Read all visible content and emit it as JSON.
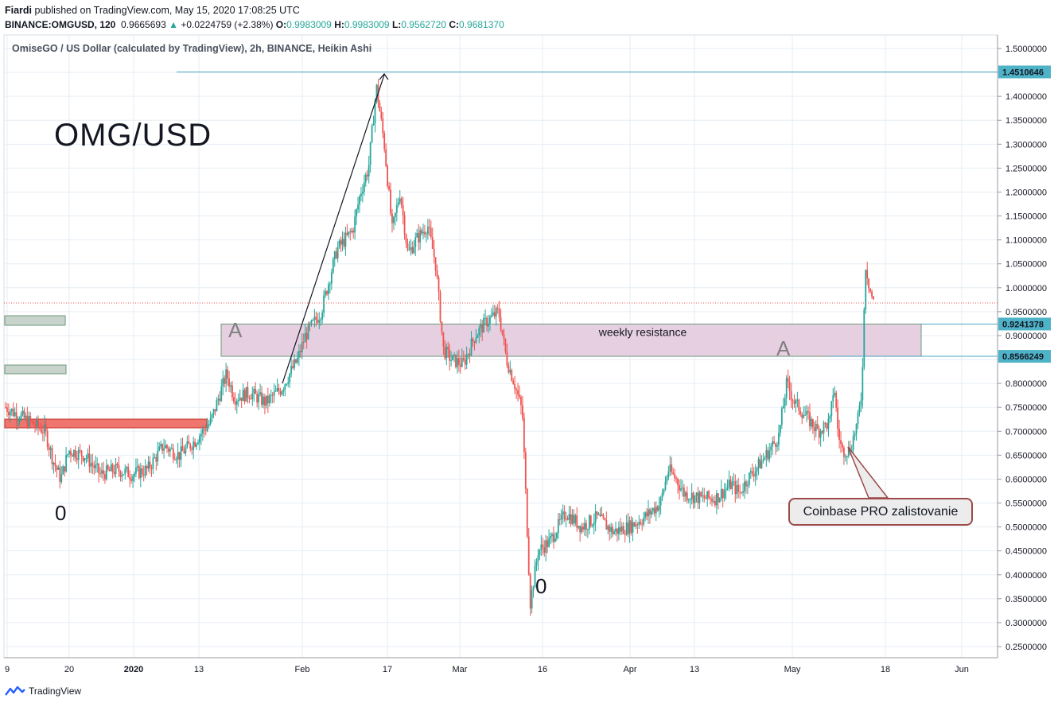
{
  "header": {
    "author": "Fiardi",
    "published_text": "published on TradingView.com, May 15, 2020 17:08:25 UTC",
    "symbol": "BINANCE:OMGUSD, 120",
    "last_price": "0.9665693",
    "change_arrow": "▲",
    "change": "+0.0224759 (+2.38%)",
    "open_label": "O:",
    "open": "0.9983009",
    "high_label": "H:",
    "high": "0.9983009",
    "low_label": "L:",
    "low": "0.9562720",
    "close_label": "C:",
    "close": "0.9681370"
  },
  "footer": {
    "brand": "TradingView"
  },
  "annotations": {
    "big_title": "OMG/USD",
    "resistance_label": "weekly resistance",
    "wave_a1": "A",
    "wave_a2": "A",
    "wave_0_1": "0",
    "wave_0_2": "0",
    "callout": "Coinbase PRO zalistovanie"
  },
  "colors": {
    "up": "#26a69a",
    "down": "#ef5350",
    "resistance_fill": "#e6cfe0",
    "grid": "#e6eef4",
    "hline": "#4aa8c0"
  },
  "chart_data": {
    "type": "candlestick",
    "title": "OmiseGO / US Dollar (calculated by TradingView), 2h, BINANCE, Heikin Ashi",
    "ylim": [
      0.23,
      1.53
    ],
    "y_ticks": [
      "1.5000000",
      "1.4500000",
      "1.4000000",
      "1.3500000",
      "1.3000000",
      "1.2500000",
      "1.2000000",
      "1.1500000",
      "1.1000000",
      "1.0500000",
      "1.0000000",
      "0.9500000",
      "0.9000000",
      "0.8500000",
      "0.8000000",
      "0.7500000",
      "0.7000000",
      "0.6500000",
      "0.6000000",
      "0.5500000",
      "0.5000000",
      "0.4500000",
      "0.4000000",
      "0.3500000",
      "0.3000000",
      "0.2500000"
    ],
    "x_ticks": [
      "9",
      "20",
      "2020",
      "13",
      "Feb",
      "17",
      "Mar",
      "16",
      "Apr",
      "13",
      "May",
      "18",
      "Jun"
    ],
    "price_labels": [
      {
        "value": 1.4510646,
        "text": "1.4510646"
      },
      {
        "value": 0.9241378,
        "text": "0.9241378"
      },
      {
        "value": 0.8566249,
        "text": "0.8566249"
      }
    ],
    "current_price": 0.968137,
    "resistance_zone": [
      0.8566249,
      0.9241378
    ],
    "price_path": [
      [
        0.0,
        0.75
      ],
      [
        0.03,
        0.72
      ],
      [
        0.05,
        0.7
      ],
      [
        0.06,
        0.64
      ],
      [
        0.07,
        0.6
      ],
      [
        0.08,
        0.66
      ],
      [
        0.1,
        0.65
      ],
      [
        0.12,
        0.61
      ],
      [
        0.14,
        0.62
      ],
      [
        0.16,
        0.61
      ],
      [
        0.18,
        0.62
      ],
      [
        0.2,
        0.67
      ],
      [
        0.22,
        0.65
      ],
      [
        0.24,
        0.68
      ],
      [
        0.26,
        0.72
      ],
      [
        0.28,
        0.82
      ],
      [
        0.29,
        0.77
      ],
      [
        0.31,
        0.78
      ],
      [
        0.33,
        0.76
      ],
      [
        0.35,
        0.79
      ],
      [
        0.37,
        0.85
      ],
      [
        0.38,
        0.9
      ],
      [
        0.4,
        0.95
      ],
      [
        0.42,
        1.08
      ],
      [
        0.44,
        1.12
      ],
      [
        0.45,
        1.2
      ],
      [
        0.46,
        1.25
      ],
      [
        0.47,
        1.42
      ],
      [
        0.48,
        1.3
      ],
      [
        0.49,
        1.12
      ],
      [
        0.5,
        1.2
      ],
      [
        0.51,
        1.07
      ],
      [
        0.52,
        1.1
      ],
      [
        0.535,
        1.13
      ],
      [
        0.545,
        1.05
      ],
      [
        0.555,
        0.87
      ],
      [
        0.565,
        0.85
      ],
      [
        0.58,
        0.84
      ],
      [
        0.595,
        0.9
      ],
      [
        0.61,
        0.93
      ],
      [
        0.625,
        0.95
      ],
      [
        0.635,
        0.85
      ],
      [
        0.645,
        0.8
      ],
      [
        0.655,
        0.74
      ],
      [
        0.665,
        0.34
      ],
      [
        0.675,
        0.45
      ],
      [
        0.69,
        0.47
      ],
      [
        0.71,
        0.53
      ],
      [
        0.73,
        0.5
      ],
      [
        0.75,
        0.52
      ],
      [
        0.77,
        0.49
      ],
      [
        0.79,
        0.5
      ],
      [
        0.81,
        0.52
      ],
      [
        0.83,
        0.55
      ],
      [
        0.84,
        0.62
      ],
      [
        0.85,
        0.6
      ],
      [
        0.86,
        0.57
      ],
      [
        0.88,
        0.56
      ],
      [
        0.9,
        0.56
      ],
      [
        0.92,
        0.59
      ],
      [
        0.93,
        0.57
      ],
      [
        0.94,
        0.6
      ],
      [
        0.96,
        0.64
      ],
      [
        0.98,
        0.69
      ],
      [
        0.99,
        0.8
      ],
      [
        1.0,
        0.76
      ],
      [
        1.02,
        0.72
      ],
      [
        1.03,
        0.7
      ],
      [
        1.045,
        0.72
      ],
      [
        1.05,
        0.8
      ],
      [
        1.055,
        0.7
      ],
      [
        1.06,
        0.66
      ],
      [
        1.07,
        0.66
      ],
      [
        1.08,
        0.72
      ],
      [
        1.085,
        0.78
      ],
      [
        1.09,
        1.05
      ],
      [
        1.095,
        1.0
      ],
      [
        1.1,
        0.97
      ]
    ]
  }
}
